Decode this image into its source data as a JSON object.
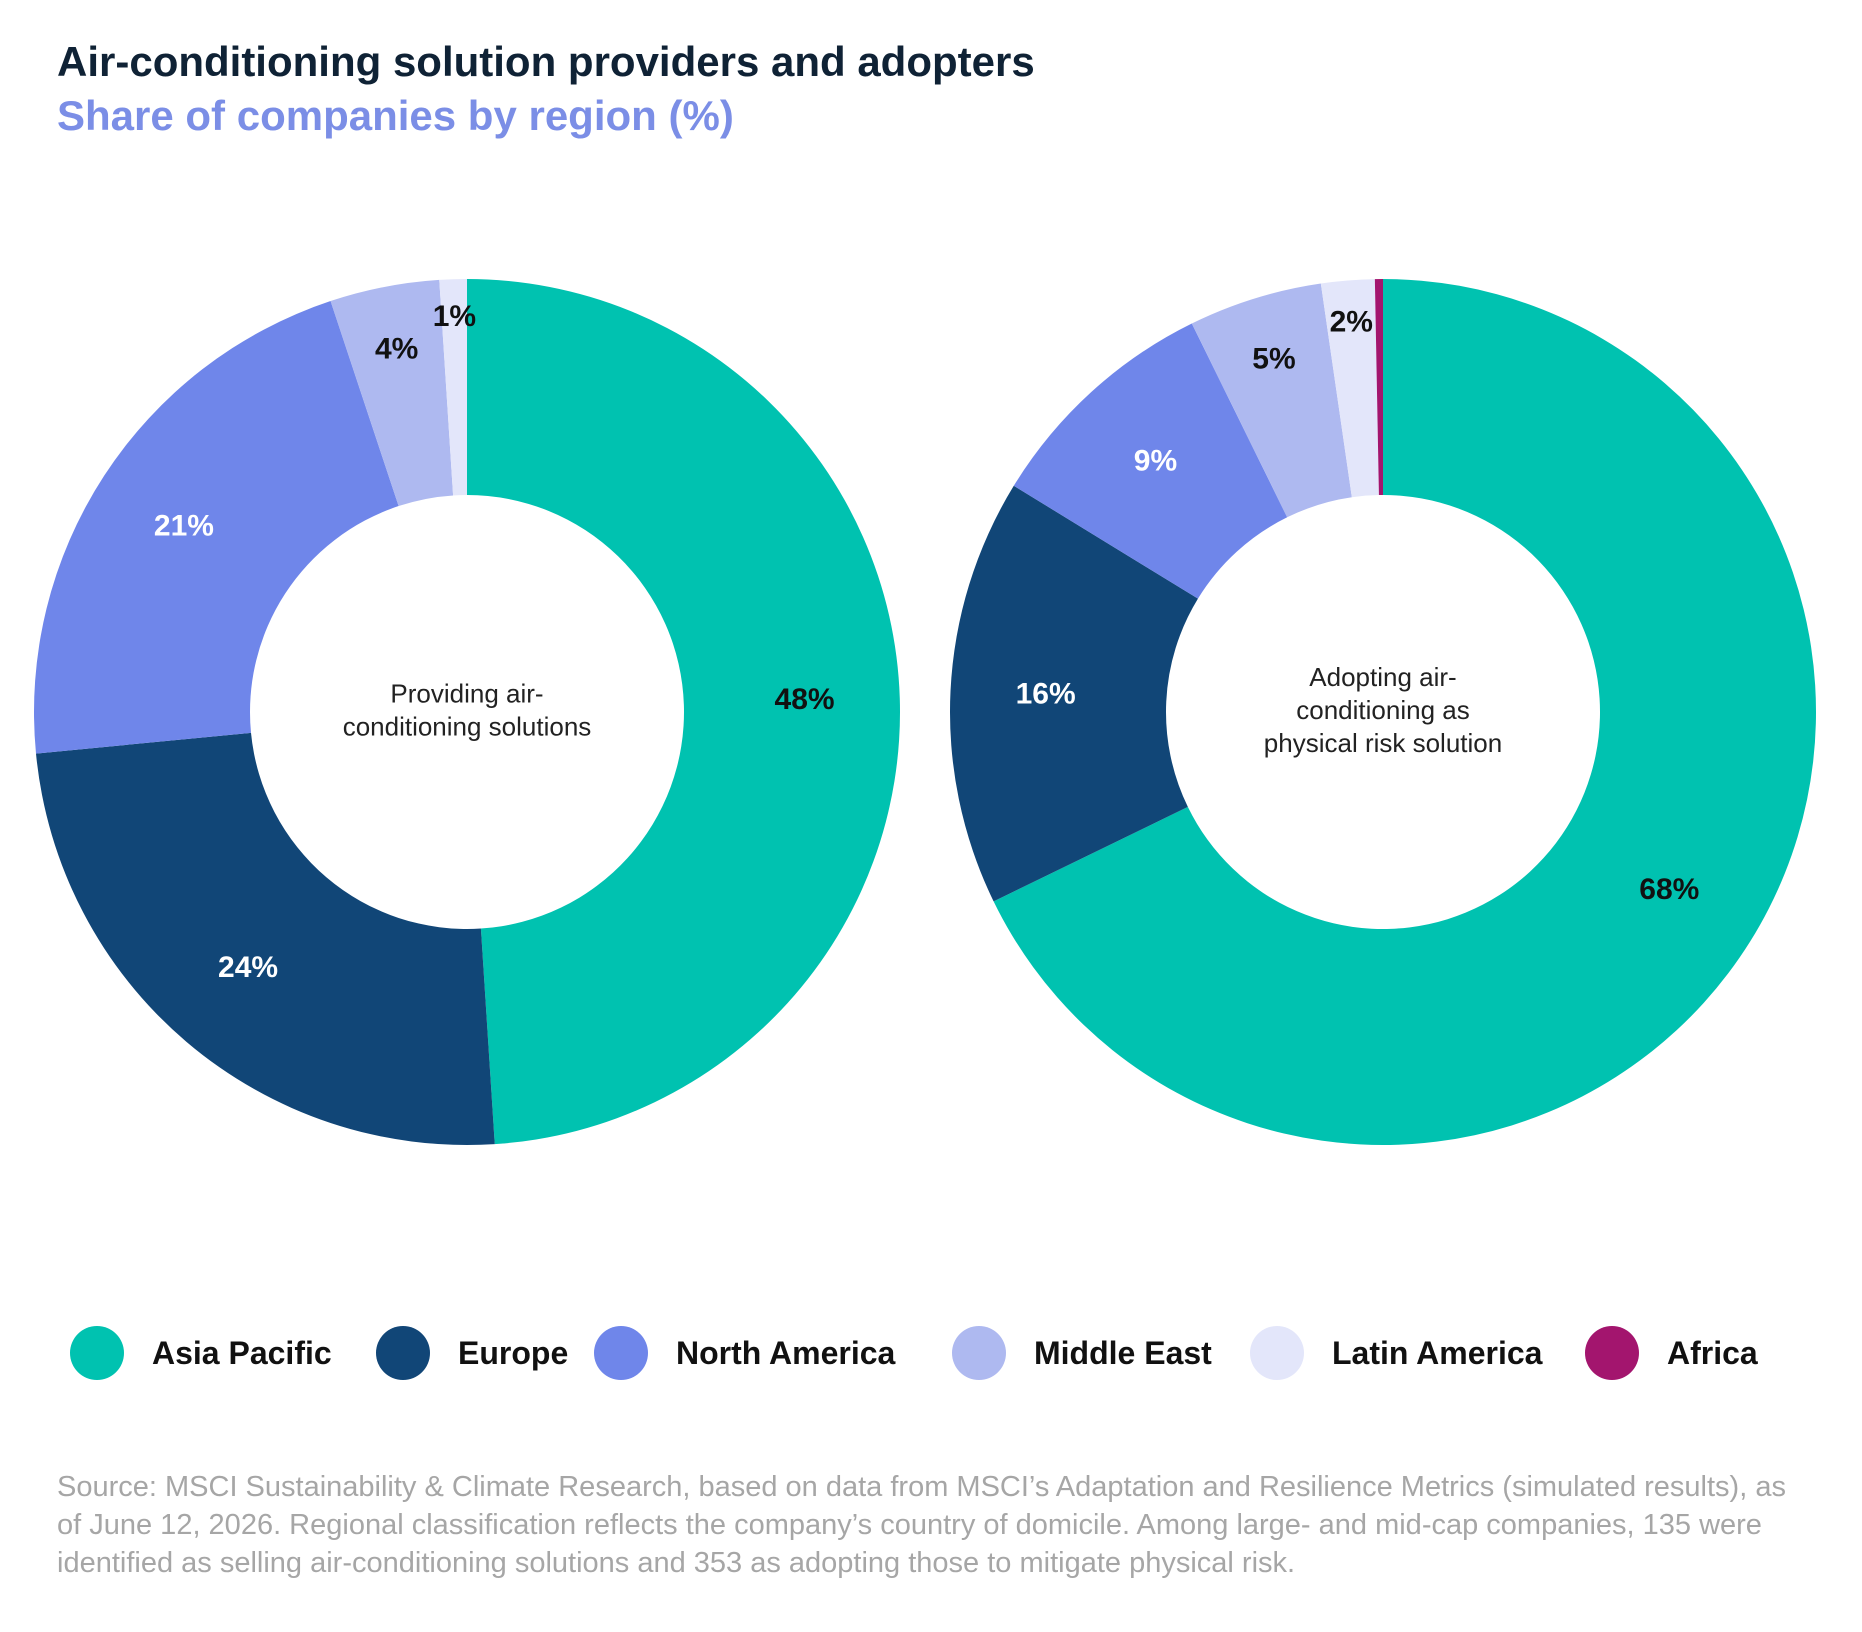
{
  "title": "Air-conditioning solution providers and adopters",
  "subtitle": "Share of companies by region (%)",
  "source": "Source: MSCI Sustainability & Climate Research, based on data from MSCI’s Adaptation and Resilience Metrics (simulated results), as of June 12, 2026. Regional classification reflects the company’s country of domicile. Among large- and mid-cap companies, 135 were identified as selling air-conditioning solutions and 353 as adopting those to mitigate physical risk.",
  "legend": [
    {
      "label": "Asia Pacific",
      "color": "#00c2b0"
    },
    {
      "label": "Europe",
      "color": "#114677"
    },
    {
      "label": "North America",
      "color": "#6f86ea"
    },
    {
      "label": "Middle East",
      "color": "#aeb9f0"
    },
    {
      "label": "Latin America",
      "color": "#e3e6fa"
    },
    {
      "label": "Africa",
      "color": "#a3156e"
    }
  ],
  "chart_data": [
    {
      "type": "pie",
      "donut": true,
      "center_label": [
        "Providing air-",
        "conditioning solutions"
      ],
      "categories": [
        "Asia Pacific",
        "Europe",
        "North America",
        "Middle East",
        "Latin America",
        "Africa"
      ],
      "values": [
        48,
        24,
        21,
        4,
        1,
        0
      ],
      "labels": [
        "48%",
        "24%",
        "21%",
        "4%",
        "1%",
        ""
      ]
    },
    {
      "type": "pie",
      "donut": true,
      "center_label": [
        "Adopting air-",
        "conditioning as",
        "physical risk solution"
      ],
      "categories": [
        "Asia Pacific",
        "Europe",
        "North America",
        "Middle East",
        "Latin America",
        "Africa"
      ],
      "values": [
        68,
        16,
        9,
        5,
        2,
        0.3
      ],
      "labels": [
        "68%",
        "16%",
        "9%",
        "5%",
        "2%",
        ""
      ]
    }
  ]
}
